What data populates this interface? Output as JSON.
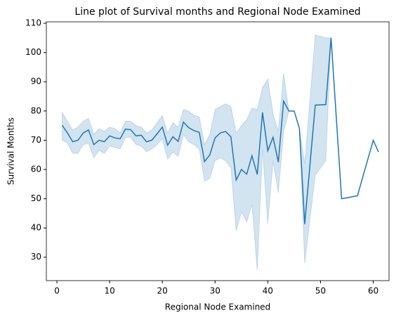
{
  "chart_data": {
    "type": "line",
    "title": "Line plot of Survival months and Regional Node Examined",
    "x_label": "Regional Node Examined",
    "y_label": "Survival Months",
    "x": [
      1,
      2,
      3,
      4,
      5,
      6,
      7,
      8,
      9,
      10,
      11,
      12,
      13,
      14,
      15,
      16,
      17,
      18,
      19,
      20,
      21,
      22,
      23,
      24,
      25,
      26,
      27,
      28,
      29,
      30,
      31,
      32,
      33,
      34,
      35,
      36,
      37,
      38,
      39,
      40,
      41,
      42,
      43,
      44,
      45,
      46,
      47,
      49,
      51,
      52,
      54,
      57,
      60,
      61
    ],
    "series": [
      {
        "name": "Survival Months",
        "color": "#1f77b4",
        "values": [
          75.1,
          72.5,
          69.5,
          70,
          72.5,
          73.5,
          68.5,
          70,
          69.5,
          71.5,
          70.8,
          70.5,
          73.8,
          73.6,
          71.5,
          71.7,
          69.5,
          70,
          72.2,
          74.5,
          68.3,
          71.2,
          69.6,
          76.2,
          74.3,
          73.3,
          72.7,
          62.7,
          65,
          70.8,
          72.5,
          73,
          71.2,
          56.4,
          60,
          58.4,
          64.7,
          58.3,
          79.5,
          66.4,
          71,
          62.5,
          83.4,
          80,
          80,
          74,
          41.3,
          82,
          82.2,
          105,
          50,
          51,
          70,
          66
        ],
        "lower": [
          70,
          69,
          65.5,
          65.5,
          68.5,
          69,
          64,
          66.5,
          65.5,
          68,
          67.5,
          67,
          71,
          71,
          68.5,
          68,
          66,
          67,
          68.5,
          70.5,
          63.5,
          66,
          64.5,
          72,
          69.5,
          68.5,
          67,
          56,
          57,
          63,
          64,
          63,
          60.5,
          39,
          45.5,
          42,
          48,
          25.5,
          67,
          41.5,
          63,
          52,
          73,
          80,
          80,
          74,
          28,
          58,
          63,
          105,
          50,
          51,
          70,
          66
        ],
        "upper": [
          79.5,
          76.5,
          73.5,
          74.5,
          76.5,
          77.5,
          72,
          74,
          73,
          74.5,
          74,
          72.5,
          76.5,
          76.5,
          75,
          74.5,
          72.5,
          73.5,
          76,
          78.5,
          72.5,
          76,
          74.5,
          80.5,
          80,
          78.5,
          78,
          68.5,
          72,
          80.5,
          81.5,
          82.5,
          81.5,
          72.5,
          75,
          77,
          81,
          80.5,
          88,
          91,
          79,
          73,
          93,
          80,
          80,
          74,
          62,
          106,
          105,
          105,
          50,
          51,
          70,
          66
        ]
      }
    ],
    "xlim": [
      -2,
      63
    ],
    "ylim": [
      22,
      110.5
    ],
    "xticks": [
      0,
      10,
      20,
      30,
      40,
      50,
      60
    ],
    "yticks": [
      30,
      40,
      50,
      60,
      70,
      80,
      90,
      100,
      110
    ]
  }
}
